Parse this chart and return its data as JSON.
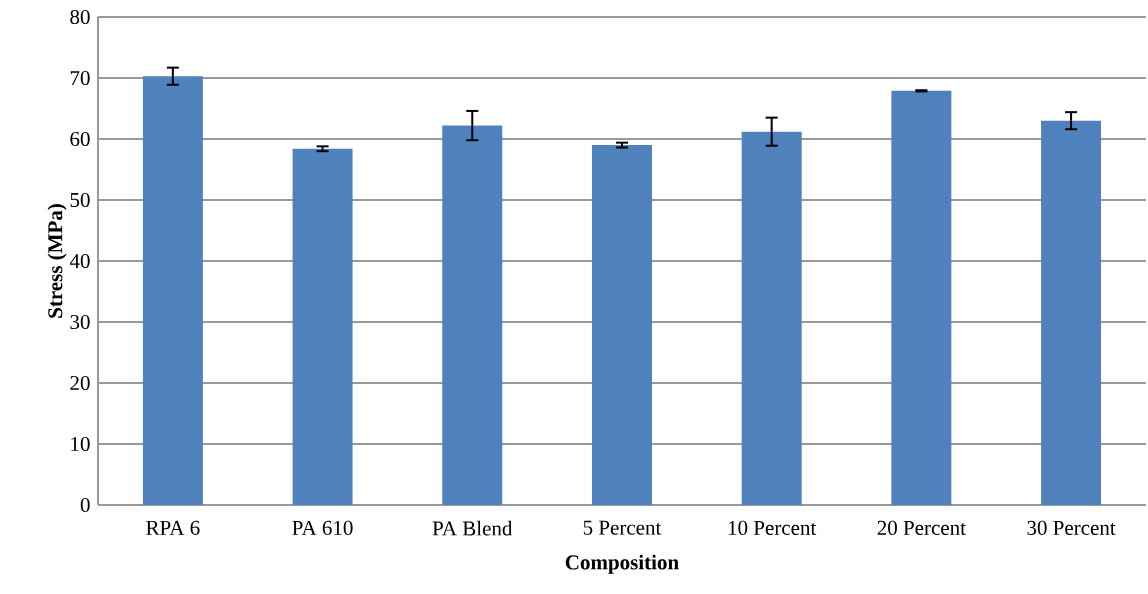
{
  "chart_data": {
    "type": "bar",
    "xlabel": "Composition",
    "ylabel": "Stress (MPa)",
    "categories": [
      "RPA 6",
      "PA 610",
      "PA Blend",
      "5 Percent",
      "10 Percent",
      "20 Percent",
      "30 Percent"
    ],
    "values": [
      70.3,
      58.4,
      62.2,
      59.0,
      61.2,
      67.9,
      63.0
    ],
    "errors": [
      1.4,
      0.4,
      2.4,
      0.4,
      2.3,
      0.1,
      1.4
    ],
    "color": "#4f81bd",
    "ylim": [
      0,
      80
    ],
    "yticks": [
      0,
      10,
      20,
      30,
      40,
      50,
      60,
      70,
      80
    ],
    "grid": "y"
  }
}
